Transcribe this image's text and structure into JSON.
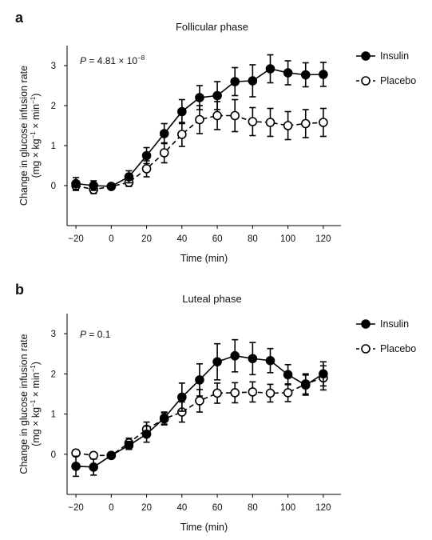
{
  "chart_data": [
    {
      "type": "line",
      "panel_label": "a",
      "title": "Follicular phase",
      "xlabel": "Time (min)",
      "ylabel_line1": "Change in glucose infusion rate",
      "ylabel_line2": "(mg × kg",
      "ylabel_sup1": "−1",
      "ylabel_mid": " × min",
      "ylabel_sup2": "−1",
      "ylabel_end": ")",
      "annotation_prefix": "P",
      "annotation_value": " = 4.81 × 10",
      "annotation_exp": "−8",
      "xlim": [
        -25,
        130
      ],
      "ylim": [
        -1,
        3.5
      ],
      "xticks": [
        -20,
        0,
        20,
        40,
        60,
        80,
        100,
        120
      ],
      "yticks": [
        0,
        1,
        2,
        3
      ],
      "legend_position": "top-right",
      "x": [
        -20,
        -10,
        0,
        10,
        20,
        30,
        40,
        50,
        60,
        70,
        80,
        90,
        100,
        110,
        120
      ],
      "series": [
        {
          "name": "Insulin",
          "marker": "filled",
          "line": "solid",
          "values": [
            0.05,
            0.0,
            -0.02,
            0.22,
            0.75,
            1.3,
            1.85,
            2.2,
            2.25,
            2.6,
            2.62,
            2.92,
            2.82,
            2.77,
            2.78
          ],
          "errors": [
            0.15,
            0.12,
            0.05,
            0.15,
            0.2,
            0.25,
            0.3,
            0.3,
            0.35,
            0.35,
            0.4,
            0.35,
            0.3,
            0.3,
            0.3
          ]
        },
        {
          "name": "Placebo",
          "marker": "open",
          "line": "dashed",
          "values": [
            0.0,
            -0.1,
            -0.02,
            0.08,
            0.42,
            0.82,
            1.28,
            1.65,
            1.75,
            1.75,
            1.6,
            1.58,
            1.5,
            1.55,
            1.58
          ],
          "errors": [
            0.12,
            0.1,
            0.05,
            0.1,
            0.2,
            0.25,
            0.3,
            0.35,
            0.35,
            0.4,
            0.35,
            0.35,
            0.35,
            0.35,
            0.35
          ]
        }
      ]
    },
    {
      "type": "line",
      "panel_label": "b",
      "title": "Luteal phase",
      "xlabel": "Time (min)",
      "ylabel_line1": "Change in glucose infusion rate",
      "ylabel_line2": "(mg × kg",
      "ylabel_sup1": "−1",
      "ylabel_mid": " × min",
      "ylabel_sup2": "−1",
      "ylabel_end": ")",
      "annotation_prefix": "P",
      "annotation_value": " = 0.1",
      "annotation_exp": "",
      "xlim": [
        -25,
        130
      ],
      "ylim": [
        -1,
        3.5
      ],
      "xticks": [
        -20,
        0,
        20,
        40,
        60,
        80,
        100,
        120
      ],
      "yticks": [
        0,
        1,
        2,
        3
      ],
      "legend_position": "top-right",
      "x": [
        -20,
        -10,
        0,
        10,
        20,
        30,
        40,
        50,
        60,
        70,
        80,
        90,
        100,
        110,
        120
      ],
      "series": [
        {
          "name": "Insulin",
          "marker": "filled",
          "line": "solid",
          "values": [
            -0.3,
            -0.32,
            -0.03,
            0.22,
            0.5,
            0.9,
            1.42,
            1.85,
            2.3,
            2.45,
            2.38,
            2.33,
            1.98,
            1.72,
            2.0
          ],
          "errors": [
            0.25,
            0.2,
            0.05,
            0.1,
            0.2,
            0.15,
            0.35,
            0.4,
            0.45,
            0.4,
            0.4,
            0.3,
            0.25,
            0.25,
            0.3
          ]
        },
        {
          "name": "Placebo",
          "marker": "open",
          "line": "dashed",
          "values": [
            0.03,
            -0.03,
            -0.03,
            0.28,
            0.62,
            0.88,
            1.05,
            1.33,
            1.52,
            1.53,
            1.55,
            1.52,
            1.53,
            1.75,
            1.9
          ],
          "errors": [
            0.08,
            0.06,
            0.05,
            0.12,
            0.18,
            0.15,
            0.25,
            0.28,
            0.25,
            0.25,
            0.25,
            0.22,
            0.22,
            0.25,
            0.3
          ]
        }
      ]
    }
  ]
}
